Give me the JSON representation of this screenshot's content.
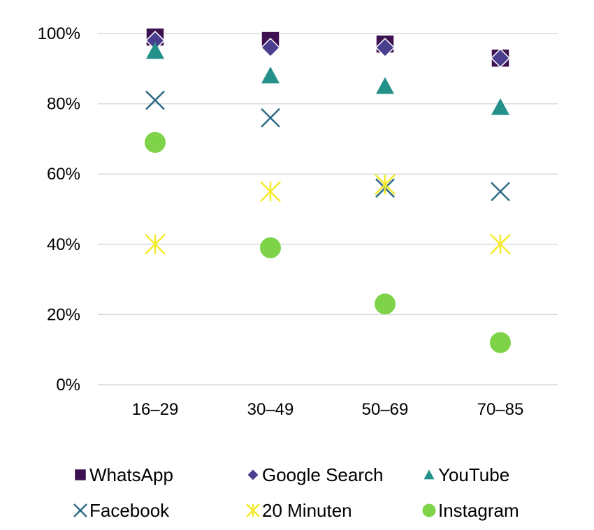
{
  "chart_data": {
    "type": "scatter",
    "categories": [
      "16–29",
      "30–49",
      "50–69",
      "70–85"
    ],
    "ylim": [
      0,
      100
    ],
    "yticks": [
      "0%",
      "20%",
      "40%",
      "60%",
      "80%",
      "100%"
    ],
    "grid": true,
    "legend_position": "bottom",
    "series": [
      {
        "name": "WhatsApp",
        "marker": "square",
        "color": "#3e1150",
        "values": [
          99,
          98,
          97,
          93
        ]
      },
      {
        "name": "Google Search",
        "marker": "diamond",
        "color": "#4a3f8f",
        "values": [
          98,
          96,
          96,
          93
        ]
      },
      {
        "name": "YouTube",
        "marker": "triangle",
        "color": "#23918a",
        "values": [
          95,
          88,
          85,
          79
        ]
      },
      {
        "name": "Facebook",
        "marker": "x",
        "color": "#2f6b87",
        "values": [
          81,
          76,
          56,
          55
        ]
      },
      {
        "name": "20 Minuten",
        "marker": "star",
        "color": "#f4ea2a",
        "values": [
          40,
          55,
          57,
          40
        ]
      },
      {
        "name": "Instagram",
        "marker": "circle",
        "color": "#7ed348",
        "values": [
          69,
          39,
          23,
          12
        ]
      }
    ]
  }
}
